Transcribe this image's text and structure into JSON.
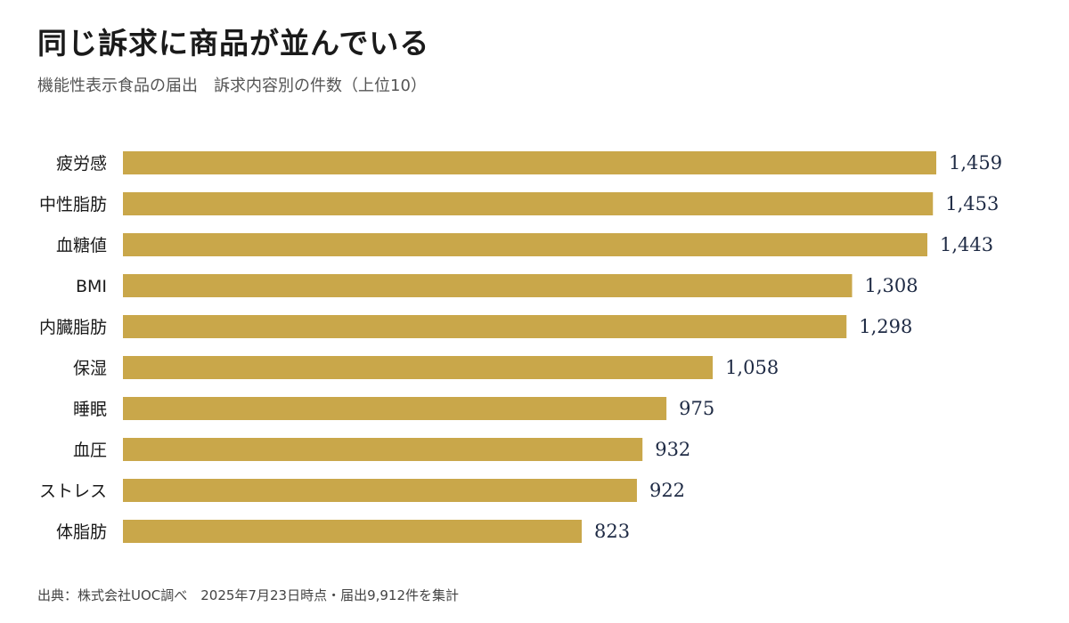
{
  "header": {
    "title": "同じ訴求に商品が並んでいる",
    "subtitle": "機能性表示食品の届出　訴求内容別の件数（上位10）"
  },
  "footer": {
    "source": "出典：株式会社UOC調べ　2025年7月23日時点・届出9,912件を集計"
  },
  "colors": {
    "bar": "#c9a74a",
    "value_label": "#1e2a44"
  },
  "chart_data": {
    "type": "bar",
    "orientation": "horizontal",
    "title": "同じ訴求に商品が並んでいる",
    "subtitle": "機能性表示食品の届出　訴求内容別の件数（上位10）",
    "categories": [
      "疲労感",
      "中性脂肪",
      "血糖値",
      "BMI",
      "内臓脂肪",
      "保湿",
      "睡眠",
      "血圧",
      "ストレス",
      "体脂肪"
    ],
    "values": [
      1459,
      1453,
      1443,
      1308,
      1298,
      1058,
      975,
      932,
      922,
      823
    ],
    "value_labels": [
      "1,459",
      "1,453",
      "1,443",
      "1,308",
      "1,298",
      "1,058",
      "975",
      "932",
      "922",
      "823"
    ],
    "xlim": [
      0,
      1459
    ],
    "grid": false,
    "legend": "none"
  }
}
